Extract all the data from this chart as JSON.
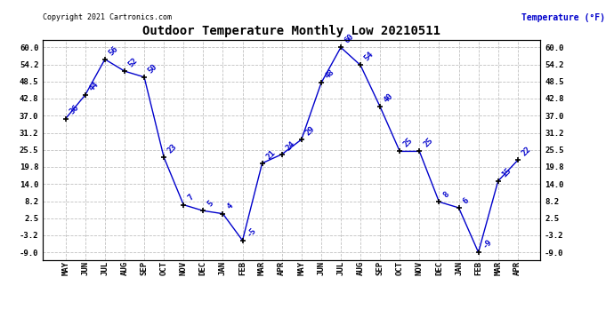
{
  "title": "Outdoor Temperature Monthly Low 20210511",
  "ylabel": "Temperature (°F)",
  "copyright_text": "Copyright 2021 Cartronics.com",
  "months": [
    "MAY",
    "JUN",
    "JUL",
    "AUG",
    "SEP",
    "OCT",
    "NOV",
    "DEC",
    "JAN",
    "FEB",
    "MAR",
    "APR",
    "MAY",
    "JUN",
    "JUL",
    "AUG",
    "SEP",
    "OCT",
    "NOV",
    "DEC",
    "JAN",
    "FEB",
    "MAR",
    "APR"
  ],
  "values": [
    36,
    44,
    56,
    52,
    50,
    23,
    7,
    5,
    4,
    -5,
    21,
    24,
    29,
    48,
    60,
    54,
    40,
    25,
    25,
    8,
    6,
    -9,
    15,
    22
  ],
  "line_color": "#0000cc",
  "marker_color": "#000000",
  "label_color": "#0000cc",
  "bg_color": "#ffffff",
  "grid_color": "#c0c0c0",
  "title_color": "#000000",
  "yticks": [
    60.0,
    54.2,
    48.5,
    42.8,
    37.0,
    31.2,
    25.5,
    19.8,
    14.0,
    8.2,
    2.5,
    -3.2,
    -9.0
  ],
  "ylim": [
    -11.5,
    62.5
  ],
  "title_fontsize": 10,
  "label_fontsize": 6.5,
  "axis_fontsize": 6.5,
  "copyright_fontsize": 6.0
}
